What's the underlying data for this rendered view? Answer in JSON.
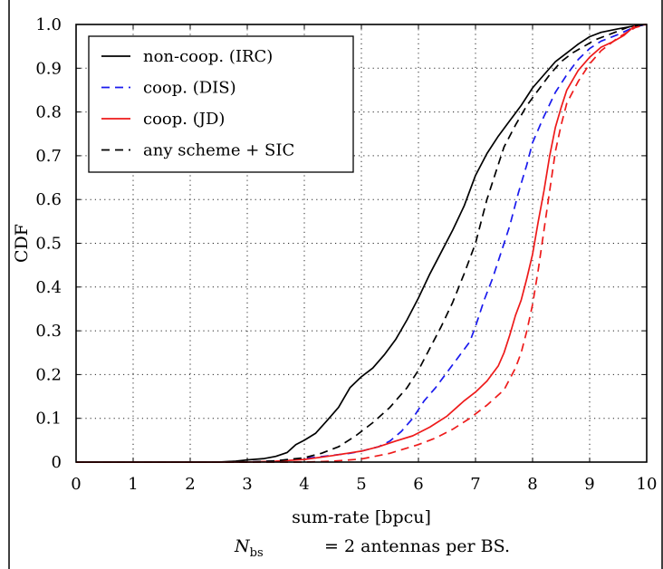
{
  "chart_data": {
    "type": "line",
    "xlabel": "sum-rate [bpcu]",
    "ylabel": "CDF",
    "xlim": [
      0,
      10
    ],
    "ylim": [
      0,
      1
    ],
    "xticks": [
      "0",
      "1",
      "2",
      "3",
      "4",
      "5",
      "6",
      "7",
      "8",
      "9",
      "10"
    ],
    "yticks": [
      "0",
      "0.1",
      "0.2",
      "0.3",
      "0.4",
      "0.5",
      "0.6",
      "0.7",
      "0.8",
      "0.9",
      "1.0"
    ],
    "grid": true,
    "grid_style": "dotted",
    "legend_position": "top-left",
    "series": [
      {
        "name": "non-coop. (IRC)",
        "color": "#000000",
        "dash": "solid",
        "points": [
          [
            0,
            0
          ],
          [
            2.5,
            0
          ],
          [
            2.8,
            0.002
          ],
          [
            3,
            0.005
          ],
          [
            3.3,
            0.008
          ],
          [
            3.5,
            0.013
          ],
          [
            3.7,
            0.022
          ],
          [
            3.85,
            0.04
          ],
          [
            4,
            0.05
          ],
          [
            4.2,
            0.066
          ],
          [
            4.4,
            0.095
          ],
          [
            4.6,
            0.125
          ],
          [
            4.8,
            0.17
          ],
          [
            5,
            0.195
          ],
          [
            5.2,
            0.215
          ],
          [
            5.4,
            0.245
          ],
          [
            5.6,
            0.28
          ],
          [
            5.8,
            0.325
          ],
          [
            6,
            0.375
          ],
          [
            6.2,
            0.43
          ],
          [
            6.4,
            0.48
          ],
          [
            6.6,
            0.53
          ],
          [
            6.8,
            0.585
          ],
          [
            7,
            0.655
          ],
          [
            7.2,
            0.705
          ],
          [
            7.4,
            0.745
          ],
          [
            7.6,
            0.78
          ],
          [
            7.8,
            0.815
          ],
          [
            8,
            0.855
          ],
          [
            8.2,
            0.885
          ],
          [
            8.4,
            0.915
          ],
          [
            8.6,
            0.935
          ],
          [
            8.8,
            0.955
          ],
          [
            9,
            0.972
          ],
          [
            9.2,
            0.982
          ],
          [
            9.5,
            0.99
          ],
          [
            9.8,
            0.997
          ],
          [
            10,
            1
          ]
        ]
      },
      {
        "name": "coop. (DIS)",
        "color": "#1a1aee",
        "dash": "dashed",
        "points": [
          [
            0,
            0
          ],
          [
            3,
            0
          ],
          [
            3.5,
            0.003
          ],
          [
            4,
            0.008
          ],
          [
            4.4,
            0.014
          ],
          [
            4.8,
            0.02
          ],
          [
            5,
            0.025
          ],
          [
            5.3,
            0.035
          ],
          [
            5.5,
            0.048
          ],
          [
            5.7,
            0.07
          ],
          [
            5.9,
            0.1
          ],
          [
            6.1,
            0.14
          ],
          [
            6.3,
            0.17
          ],
          [
            6.5,
            0.205
          ],
          [
            6.7,
            0.24
          ],
          [
            6.9,
            0.275
          ],
          [
            7,
            0.31
          ],
          [
            7.15,
            0.37
          ],
          [
            7.3,
            0.42
          ],
          [
            7.45,
            0.48
          ],
          [
            7.6,
            0.54
          ],
          [
            7.75,
            0.615
          ],
          [
            7.9,
            0.68
          ],
          [
            8,
            0.73
          ],
          [
            8.2,
            0.79
          ],
          [
            8.4,
            0.845
          ],
          [
            8.6,
            0.885
          ],
          [
            8.8,
            0.92
          ],
          [
            9,
            0.945
          ],
          [
            9.2,
            0.962
          ],
          [
            9.5,
            0.977
          ],
          [
            9.8,
            0.995
          ],
          [
            10,
            1
          ]
        ]
      },
      {
        "name": "coop. (JD)",
        "color": "#ee1a1a",
        "dash": "solid",
        "points": [
          [
            0,
            0
          ],
          [
            3,
            0
          ],
          [
            3.5,
            0.002
          ],
          [
            4,
            0.006
          ],
          [
            4.5,
            0.015
          ],
          [
            5,
            0.025
          ],
          [
            5.3,
            0.035
          ],
          [
            5.6,
            0.048
          ],
          [
            5.9,
            0.06
          ],
          [
            6.2,
            0.08
          ],
          [
            6.5,
            0.105
          ],
          [
            6.8,
            0.14
          ],
          [
            7,
            0.16
          ],
          [
            7.2,
            0.185
          ],
          [
            7.4,
            0.22
          ],
          [
            7.5,
            0.25
          ],
          [
            7.6,
            0.29
          ],
          [
            7.7,
            0.335
          ],
          [
            7.8,
            0.37
          ],
          [
            7.9,
            0.42
          ],
          [
            8,
            0.475
          ],
          [
            8.1,
            0.55
          ],
          [
            8.2,
            0.62
          ],
          [
            8.3,
            0.7
          ],
          [
            8.4,
            0.765
          ],
          [
            8.5,
            0.81
          ],
          [
            8.6,
            0.85
          ],
          [
            8.8,
            0.895
          ],
          [
            9,
            0.925
          ],
          [
            9.2,
            0.948
          ],
          [
            9.4,
            0.96
          ],
          [
            9.6,
            0.975
          ],
          [
            9.8,
            0.998
          ],
          [
            10,
            1
          ]
        ]
      },
      {
        "name": "any scheme + SIC",
        "color": "#000000",
        "dash": "dashed",
        "points": [
          [
            0,
            0
          ],
          [
            3,
            0
          ],
          [
            3.5,
            0.003
          ],
          [
            4,
            0.01
          ],
          [
            4.3,
            0.02
          ],
          [
            4.6,
            0.035
          ],
          [
            4.9,
            0.06
          ],
          [
            5.2,
            0.09
          ],
          [
            5.5,
            0.125
          ],
          [
            5.8,
            0.17
          ],
          [
            6,
            0.21
          ],
          [
            6.2,
            0.26
          ],
          [
            6.4,
            0.31
          ],
          [
            6.6,
            0.365
          ],
          [
            6.8,
            0.43
          ],
          [
            7,
            0.5
          ],
          [
            7.1,
            0.55
          ],
          [
            7.2,
            0.6
          ],
          [
            7.35,
            0.66
          ],
          [
            7.5,
            0.72
          ],
          [
            7.7,
            0.77
          ],
          [
            7.9,
            0.815
          ],
          [
            8.1,
            0.85
          ],
          [
            8.3,
            0.885
          ],
          [
            8.5,
            0.915
          ],
          [
            8.7,
            0.935
          ],
          [
            8.9,
            0.95
          ],
          [
            9.1,
            0.965
          ],
          [
            9.4,
            0.98
          ],
          [
            9.7,
            0.995
          ],
          [
            10,
            1
          ]
        ]
      },
      {
        "name": "",
        "legend": false,
        "color": "#ee1a1a",
        "dash": "dashed",
        "points": [
          [
            0,
            0
          ],
          [
            4,
            0
          ],
          [
            4.5,
            0.002
          ],
          [
            5,
            0.007
          ],
          [
            5.5,
            0.02
          ],
          [
            6,
            0.04
          ],
          [
            6.3,
            0.055
          ],
          [
            6.6,
            0.075
          ],
          [
            6.9,
            0.1
          ],
          [
            7.2,
            0.13
          ],
          [
            7.5,
            0.165
          ],
          [
            7.7,
            0.215
          ],
          [
            7.8,
            0.25
          ],
          [
            7.9,
            0.3
          ],
          [
            8,
            0.36
          ],
          [
            8.1,
            0.44
          ],
          [
            8.2,
            0.53
          ],
          [
            8.3,
            0.62
          ],
          [
            8.4,
            0.71
          ],
          [
            8.5,
            0.77
          ],
          [
            8.6,
            0.82
          ],
          [
            8.8,
            0.87
          ],
          [
            9,
            0.91
          ],
          [
            9.2,
            0.94
          ],
          [
            9.5,
            0.97
          ],
          [
            9.8,
            0.993
          ],
          [
            10,
            1
          ]
        ]
      }
    ],
    "caption": {
      "symbol": "N",
      "subscript": "bs",
      "text": "= 2 antennas per BS."
    }
  }
}
